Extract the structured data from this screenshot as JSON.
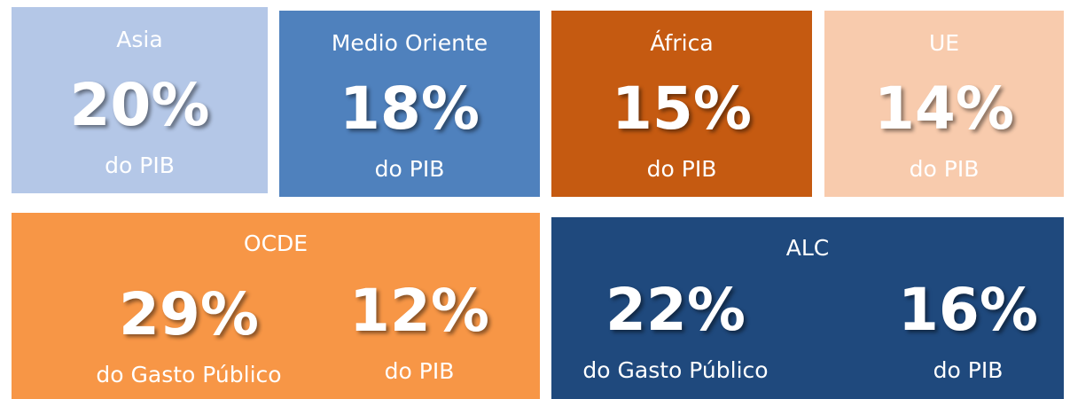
{
  "tiles": [
    {
      "title": "Asia",
      "stats": [
        {
          "value": "20%",
          "label": "do PIB"
        }
      ]
    },
    {
      "title": "Medio Oriente",
      "stats": [
        {
          "value": "18%",
          "label": "do PIB"
        }
      ]
    },
    {
      "title": "África",
      "stats": [
        {
          "value": "15%",
          "label": "do PIB"
        }
      ]
    },
    {
      "title": "UE",
      "stats": [
        {
          "value": "14%",
          "label": "do PIB"
        }
      ]
    },
    {
      "title": "OCDE",
      "stats": [
        {
          "value": "29%",
          "label": "do Gasto Público"
        },
        {
          "value": "12%",
          "label": "do PIB"
        }
      ]
    },
    {
      "title": "ALC",
      "stats": [
        {
          "value": "22%",
          "label": "do Gasto Público"
        },
        {
          "value": "16%",
          "label": "do PIB"
        }
      ]
    }
  ]
}
